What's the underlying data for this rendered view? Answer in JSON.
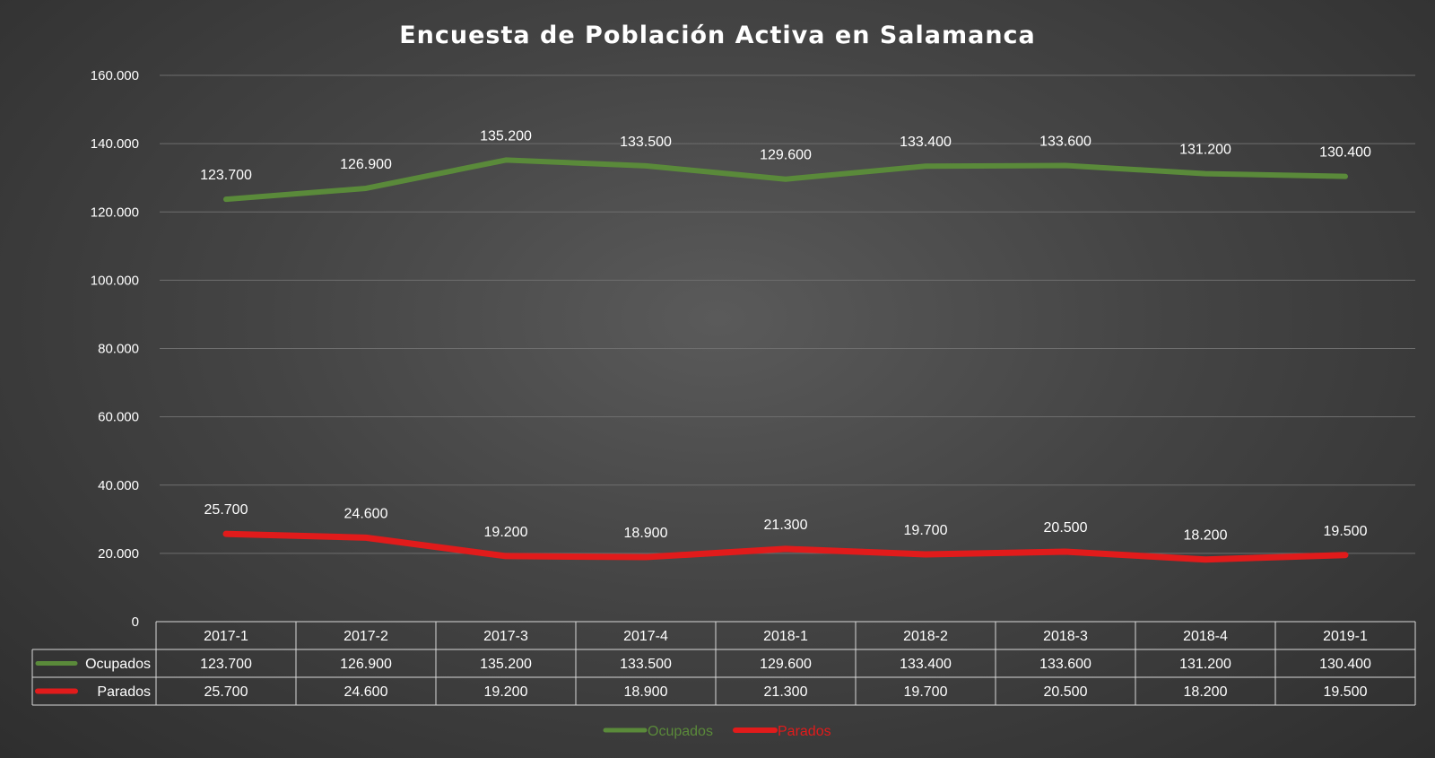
{
  "chart_data": {
    "type": "line",
    "title": "Encuesta de Población Activa en Salamanca",
    "categories": [
      "2017-1",
      "2017-2",
      "2017-3",
      "2017-4",
      "2018-1",
      "2018-2",
      "2018-3",
      "2018-4",
      "2019-1"
    ],
    "series": [
      {
        "name": "Ocupados",
        "color": "#5a8a3a",
        "values": [
          123700,
          126900,
          135200,
          133500,
          129600,
          133400,
          133600,
          131200,
          130400
        ],
        "labels": [
          "123.700",
          "126.900",
          "135.200",
          "133.500",
          "129.600",
          "133.400",
          "133.600",
          "131.200",
          "130.400"
        ]
      },
      {
        "name": "Parados",
        "color": "#e11b1b",
        "values": [
          25700,
          24600,
          19200,
          18900,
          21300,
          19700,
          20500,
          18200,
          19500
        ],
        "labels": [
          "25.700",
          "24.600",
          "19.200",
          "18.900",
          "21.300",
          "19.700",
          "20.500",
          "18.200",
          "19.500"
        ]
      }
    ],
    "ylim": [
      0,
      160000
    ],
    "yticks": [
      0,
      20000,
      40000,
      60000,
      80000,
      100000,
      120000,
      140000,
      160000
    ],
    "ytick_labels": [
      "0",
      "20.000",
      "40.000",
      "60.000",
      "80.000",
      "100.000",
      "120.000",
      "140.000",
      "160.000"
    ],
    "grid": true,
    "data_table": true,
    "legend_position": "bottom"
  }
}
